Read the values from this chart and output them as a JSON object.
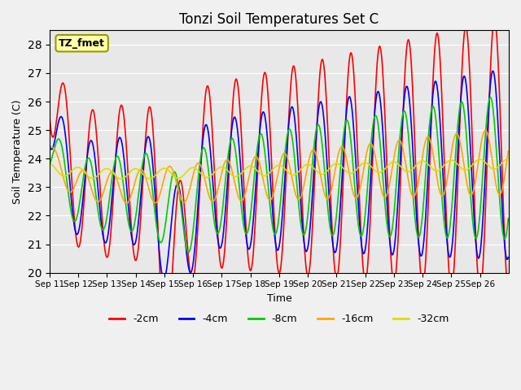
{
  "title": "Tonzi Soil Temperatures Set C",
  "xlabel": "Time",
  "ylabel": "Soil Temperature (C)",
  "annotation": "TZ_fmet",
  "ylim": [
    20.0,
    28.5
  ],
  "yticks": [
    20.0,
    21.0,
    22.0,
    23.0,
    24.0,
    25.0,
    26.0,
    27.0,
    28.0
  ],
  "x_labels": [
    "Sep 11",
    "Sep 12",
    "Sep 13",
    "Sep 14",
    "Sep 15",
    "Sep 16",
    "Sep 17",
    "Sep 18",
    "Sep 19",
    "Sep 20",
    "Sep 21",
    "Sep 22",
    "Sep 23",
    "Sep 24",
    "Sep 25",
    "Sep 26"
  ],
  "series_colors": {
    "-2cm": "#ff0000",
    "-4cm": "#0000ff",
    "-8cm": "#00cc00",
    "-16cm": "#ffa500",
    "-32cm": "#dddd00"
  },
  "fig_bg": "#f0f0f0",
  "plot_bg": "#e8e8e8",
  "grid_color": "#ffffff",
  "n_days": 16,
  "pts_per_day": 48
}
